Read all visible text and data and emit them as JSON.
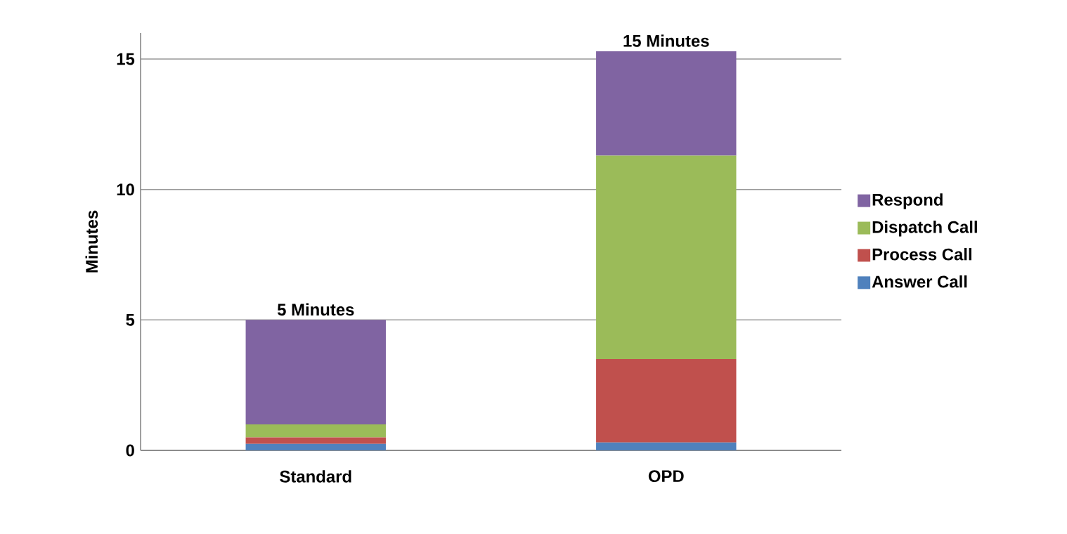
{
  "chart_data": {
    "type": "bar",
    "stacked": true,
    "categories": [
      "Standard",
      "OPD"
    ],
    "ylabel": "Minutes",
    "ylim": [
      0,
      16
    ],
    "yticks": [
      0,
      5,
      10,
      15
    ],
    "grid": "y",
    "legend": "right",
    "series": [
      {
        "name": "Answer Call",
        "color": "#4f81bd",
        "values": [
          0.25,
          0.3
        ]
      },
      {
        "name": "Process Call",
        "color": "#c0504d",
        "values": [
          0.25,
          3.2
        ]
      },
      {
        "name": "Dispatch Call",
        "color": "#9bbb59",
        "values": [
          0.5,
          7.8
        ]
      },
      {
        "name": "Respond",
        "color": "#8064a2",
        "values": [
          4.0,
          4.0
        ]
      }
    ],
    "totals": [
      "5 Minutes",
      "15 Minutes"
    ]
  }
}
